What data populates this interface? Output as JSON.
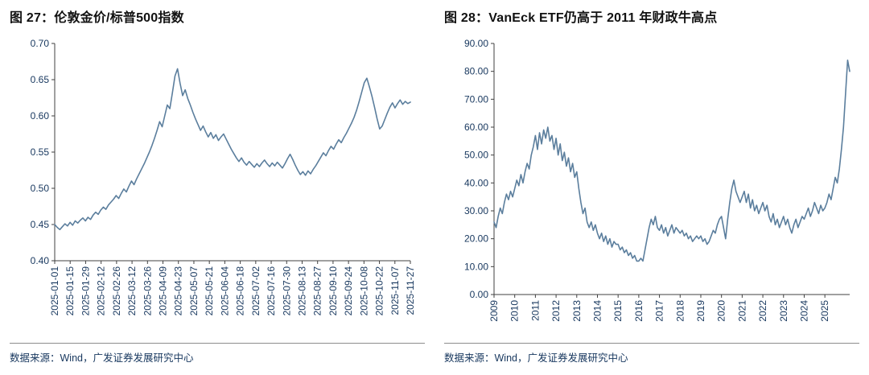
{
  "figures": [
    {
      "title": "图 27：伦敦金价/标普500指数",
      "source": "数据来源：Wind，广发证券发展研究中心"
    },
    {
      "title": "图 28：VanEck ETF仍高于 2011 年财政牛高点",
      "source": "数据来源：Wind，广发证券发展研究中心"
    }
  ],
  "colors": {
    "line": "#5b7e9d",
    "axis": "#404040",
    "tick_label": "#17375e",
    "title": "#111111",
    "source_text": "#17375e"
  },
  "chart_data": [
    {
      "type": "line",
      "title": "图 27：伦敦金价/标普500指数",
      "xlabel": "",
      "ylabel": "",
      "ylim": [
        0.4,
        0.7
      ],
      "yticks": [
        "0.40",
        "0.45",
        "0.50",
        "0.55",
        "0.60",
        "0.65",
        "0.70"
      ],
      "grid": false,
      "legend": "none",
      "line_color": "#5b7e9d",
      "xtick_labels": [
        "2025-01-01",
        "2025-01-15",
        "2025-01-29",
        "2025-02-12",
        "2025-02-26",
        "2025-03-12",
        "2025-03-26",
        "2025-04-09",
        "2025-04-23",
        "2025-05-07",
        "2025-05-21",
        "2025-06-04",
        "2025-06-18",
        "2025-07-02",
        "2025-07-16",
        "2025-07-30",
        "2025-08-13",
        "2025-08-27",
        "2025-09-10",
        "2025-09-24",
        "2025-10-08",
        "2025-10-22",
        "2025-11-07",
        "2025-11-27"
      ],
      "values": [
        0.45,
        0.446,
        0.443,
        0.447,
        0.451,
        0.448,
        0.453,
        0.449,
        0.455,
        0.452,
        0.456,
        0.459,
        0.455,
        0.46,
        0.457,
        0.463,
        0.467,
        0.464,
        0.47,
        0.474,
        0.471,
        0.477,
        0.481,
        0.485,
        0.49,
        0.486,
        0.493,
        0.499,
        0.495,
        0.503,
        0.51,
        0.505,
        0.513,
        0.52,
        0.527,
        0.534,
        0.542,
        0.55,
        0.559,
        0.569,
        0.58,
        0.592,
        0.585,
        0.6,
        0.615,
        0.61,
        0.632,
        0.655,
        0.665,
        0.645,
        0.628,
        0.636,
        0.624,
        0.615,
        0.605,
        0.596,
        0.588,
        0.58,
        0.586,
        0.578,
        0.571,
        0.577,
        0.569,
        0.574,
        0.566,
        0.571,
        0.575,
        0.568,
        0.561,
        0.554,
        0.548,
        0.542,
        0.537,
        0.542,
        0.536,
        0.532,
        0.537,
        0.533,
        0.529,
        0.534,
        0.53,
        0.535,
        0.539,
        0.534,
        0.53,
        0.535,
        0.531,
        0.536,
        0.532,
        0.528,
        0.534,
        0.541,
        0.547,
        0.54,
        0.532,
        0.525,
        0.519,
        0.523,
        0.518,
        0.524,
        0.52,
        0.526,
        0.531,
        0.537,
        0.543,
        0.549,
        0.545,
        0.552,
        0.558,
        0.554,
        0.561,
        0.567,
        0.563,
        0.57,
        0.576,
        0.583,
        0.59,
        0.598,
        0.608,
        0.62,
        0.633,
        0.646,
        0.652,
        0.64,
        0.627,
        0.612,
        0.596,
        0.582,
        0.586,
        0.595,
        0.604,
        0.612,
        0.618,
        0.611,
        0.617,
        0.622,
        0.616,
        0.62,
        0.617,
        0.619
      ]
    },
    {
      "type": "line",
      "title": "图 28：VanEck ETF仍高于 2011 年财政牛高点",
      "xlabel": "",
      "ylabel": "",
      "ylim": [
        0,
        90
      ],
      "yticks": [
        "0.00",
        "10.00",
        "20.00",
        "30.00",
        "40.00",
        "50.00",
        "60.00",
        "70.00",
        "80.00",
        "90.00"
      ],
      "grid": false,
      "legend": "none",
      "line_color": "#5b7e9d",
      "xtick_labels": [
        "2009",
        "2010",
        "2011",
        "2012",
        "2013",
        "2014",
        "2015",
        "2016",
        "2017",
        "2018",
        "2019",
        "2020",
        "2021",
        "2022",
        "2023",
        "2024",
        "2025"
      ],
      "xtick_indices": [
        0,
        10,
        20,
        30,
        40,
        50,
        60,
        70,
        80,
        90,
        100,
        110,
        120,
        130,
        140,
        150,
        160
      ],
      "values": [
        26,
        24,
        28,
        31,
        29,
        33,
        36,
        34,
        37,
        35,
        38,
        41,
        39,
        43,
        40,
        44,
        47,
        45,
        50,
        53,
        57,
        52,
        58,
        54,
        59,
        56,
        60,
        55,
        57,
        52,
        56,
        50,
        54,
        48,
        51,
        46,
        49,
        44,
        47,
        42,
        44,
        38,
        33,
        29,
        31,
        26,
        24,
        26,
        23,
        25,
        22,
        20,
        22,
        19,
        21,
        18,
        20,
        17,
        19,
        18,
        18,
        16,
        17,
        15,
        16,
        14,
        15,
        13,
        14,
        12,
        12,
        13,
        12,
        16,
        20,
        24,
        27,
        25,
        28,
        24,
        23,
        25,
        22,
        24,
        21,
        23,
        25,
        22,
        24,
        23,
        22,
        23,
        21,
        22,
        20,
        21,
        19,
        20,
        21,
        20,
        21,
        19,
        20,
        18,
        19,
        21,
        23,
        22,
        25,
        27,
        28,
        24,
        20,
        27,
        33,
        38,
        41,
        37,
        35,
        33,
        35,
        37,
        33,
        36,
        31,
        34,
        30,
        32,
        29,
        31,
        33,
        30,
        32,
        28,
        26,
        29,
        25,
        27,
        24,
        26,
        28,
        25,
        27,
        24,
        22,
        25,
        27,
        24,
        26,
        28,
        27,
        29,
        31,
        28,
        30,
        33,
        31,
        29,
        32,
        30,
        31,
        33,
        36,
        34,
        38,
        42,
        40,
        45,
        52,
        60,
        72,
        84,
        80
      ]
    }
  ]
}
